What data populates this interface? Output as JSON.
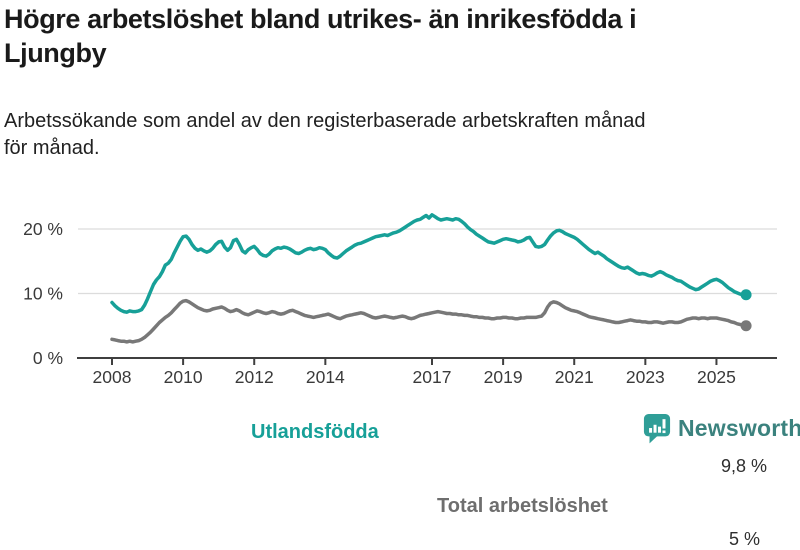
{
  "header": {
    "title": "Högre arbetslöshet bland utrikes- än inrikesfödda i\nLjungby",
    "subtitle": "Arbetssökande som andel av den registerbaserade arbetskraften månad\nför månad."
  },
  "footer": {
    "brand": "Newsworthy",
    "logo_icon": "bar-chart-speech-bubble-icon",
    "brand_color": "#2f9e97"
  },
  "chart_data": {
    "type": "line",
    "title": "Högre arbetslöshet bland utrikes- än inrikesfödda i Ljungby",
    "subtitle": "Arbetssökande som andel av den registerbaserade arbetskraften månad för månad.",
    "unit": "%",
    "frequency": "monthly",
    "x_range": [
      "2008-01",
      "2025-11"
    ],
    "ylim": [
      0,
      23
    ],
    "grid": true,
    "legend_position": "inline-labels",
    "y_ticks": [
      {
        "value": 0,
        "label": "0 %"
      },
      {
        "value": 10,
        "label": "10 %"
      },
      {
        "value": 20,
        "label": "20 %"
      }
    ],
    "x_ticks": [
      {
        "year": 2008,
        "label": "2008"
      },
      {
        "year": 2010,
        "label": "2010"
      },
      {
        "year": 2012,
        "label": "2012"
      },
      {
        "year": 2014,
        "label": "2014"
      },
      {
        "year": 2017,
        "label": "2017"
      },
      {
        "year": 2019,
        "label": "2019"
      },
      {
        "year": 2021,
        "label": "2021"
      },
      {
        "year": 2023,
        "label": "2023"
      },
      {
        "year": 2025,
        "label": "2025"
      }
    ],
    "series": [
      {
        "name": "Utlandsfödda",
        "color": "#17a098",
        "end_label": "9,8 %",
        "end_value": 9.8,
        "values": [
          8.6,
          8.1,
          7.7,
          7.4,
          7.2,
          7.1,
          7.3,
          7.2,
          7.2,
          7.3,
          7.5,
          8.2,
          9.2,
          10.3,
          11.4,
          12.1,
          12.6,
          13.4,
          14.4,
          14.7,
          15.3,
          16.3,
          17.2,
          18.1,
          18.8,
          18.9,
          18.4,
          17.6,
          17.0,
          16.7,
          16.9,
          16.6,
          16.4,
          16.6,
          17.0,
          17.6,
          18.0,
          18.1,
          17.2,
          16.7,
          17.1,
          18.2,
          18.4,
          17.6,
          16.6,
          16.3,
          16.8,
          17.1,
          17.3,
          16.8,
          16.2,
          15.9,
          15.8,
          16.1,
          16.6,
          16.9,
          17.1,
          17.0,
          17.2,
          17.1,
          16.9,
          16.6,
          16.3,
          16.2,
          16.4,
          16.7,
          16.9,
          17.0,
          16.8,
          16.9,
          17.1,
          17.0,
          16.8,
          16.3,
          15.9,
          15.6,
          15.5,
          15.8,
          16.2,
          16.6,
          16.9,
          17.2,
          17.5,
          17.7,
          17.8,
          18.0,
          18.2,
          18.4,
          18.6,
          18.8,
          18.9,
          19.0,
          19.1,
          19.0,
          19.2,
          19.4,
          19.5,
          19.7,
          20.0,
          20.3,
          20.6,
          20.9,
          21.2,
          21.4,
          21.5,
          21.8,
          22.1,
          21.7,
          22.2,
          21.9,
          21.6,
          21.4,
          21.5,
          21.6,
          21.5,
          21.4,
          21.6,
          21.5,
          21.2,
          20.8,
          20.3,
          19.9,
          19.6,
          19.2,
          18.9,
          18.6,
          18.3,
          18.0,
          17.9,
          17.8,
          18.0,
          18.2,
          18.4,
          18.5,
          18.4,
          18.3,
          18.2,
          18.0,
          18.1,
          18.3,
          18.6,
          18.7,
          18.0,
          17.3,
          17.2,
          17.3,
          17.6,
          18.3,
          18.9,
          19.4,
          19.7,
          19.8,
          19.6,
          19.3,
          19.1,
          18.9,
          18.7,
          18.4,
          18.0,
          17.6,
          17.2,
          16.8,
          16.5,
          16.2,
          16.4,
          16.1,
          15.8,
          15.4,
          15.1,
          14.8,
          14.5,
          14.2,
          14.0,
          13.9,
          14.1,
          13.8,
          13.5,
          13.2,
          13.0,
          13.1,
          13.0,
          12.8,
          12.7,
          12.9,
          13.2,
          13.4,
          13.2,
          12.9,
          12.7,
          12.5,
          12.2,
          12.0,
          11.9,
          11.6,
          11.3,
          11.0,
          10.8,
          10.6,
          10.7,
          11.0,
          11.3,
          11.6,
          11.9,
          12.1,
          12.2,
          12.0,
          11.7,
          11.3,
          10.9,
          10.6,
          10.3,
          10.1,
          9.9,
          9.8,
          9.8
        ]
      },
      {
        "name": "Total arbetslöshet",
        "color": "#787878",
        "end_label": "5 %",
        "end_value": 5.0,
        "values": [
          2.9,
          2.8,
          2.7,
          2.6,
          2.6,
          2.5,
          2.6,
          2.5,
          2.6,
          2.7,
          2.9,
          3.2,
          3.6,
          4.0,
          4.5,
          5.0,
          5.5,
          5.9,
          6.3,
          6.6,
          7.0,
          7.5,
          8.0,
          8.5,
          8.8,
          8.9,
          8.7,
          8.4,
          8.1,
          7.8,
          7.6,
          7.4,
          7.3,
          7.4,
          7.6,
          7.7,
          7.8,
          7.9,
          7.7,
          7.4,
          7.2,
          7.3,
          7.5,
          7.3,
          7.0,
          6.8,
          6.7,
          6.9,
          7.1,
          7.3,
          7.2,
          7.0,
          6.9,
          7.0,
          7.2,
          7.1,
          6.9,
          6.8,
          6.9,
          7.1,
          7.3,
          7.4,
          7.2,
          7.0,
          6.8,
          6.6,
          6.5,
          6.4,
          6.3,
          6.4,
          6.5,
          6.6,
          6.7,
          6.8,
          6.6,
          6.4,
          6.2,
          6.1,
          6.3,
          6.5,
          6.6,
          6.7,
          6.8,
          6.9,
          7.0,
          6.9,
          6.7,
          6.5,
          6.3,
          6.2,
          6.3,
          6.4,
          6.5,
          6.4,
          6.3,
          6.2,
          6.3,
          6.4,
          6.5,
          6.4,
          6.2,
          6.1,
          6.2,
          6.4,
          6.6,
          6.7,
          6.8,
          6.9,
          7.0,
          7.1,
          7.2,
          7.1,
          7.0,
          6.9,
          6.9,
          6.8,
          6.8,
          6.7,
          6.7,
          6.6,
          6.6,
          6.5,
          6.4,
          6.4,
          6.3,
          6.3,
          6.2,
          6.2,
          6.1,
          6.1,
          6.2,
          6.2,
          6.3,
          6.3,
          6.2,
          6.2,
          6.1,
          6.1,
          6.2,
          6.2,
          6.3,
          6.3,
          6.3,
          6.3,
          6.4,
          6.5,
          7.0,
          7.9,
          8.5,
          8.7,
          8.6,
          8.4,
          8.1,
          7.8,
          7.6,
          7.4,
          7.3,
          7.2,
          7.0,
          6.8,
          6.6,
          6.4,
          6.3,
          6.2,
          6.1,
          6.0,
          5.9,
          5.8,
          5.7,
          5.6,
          5.5,
          5.5,
          5.6,
          5.7,
          5.8,
          5.9,
          5.8,
          5.7,
          5.7,
          5.6,
          5.6,
          5.5,
          5.5,
          5.6,
          5.6,
          5.5,
          5.4,
          5.5,
          5.6,
          5.6,
          5.5,
          5.5,
          5.6,
          5.8,
          6.0,
          6.1,
          6.2,
          6.2,
          6.1,
          6.2,
          6.2,
          6.1,
          6.2,
          6.2,
          6.2,
          6.1,
          6.0,
          5.9,
          5.8,
          5.6,
          5.5,
          5.3,
          5.2,
          5.1,
          5.0
        ]
      }
    ]
  }
}
